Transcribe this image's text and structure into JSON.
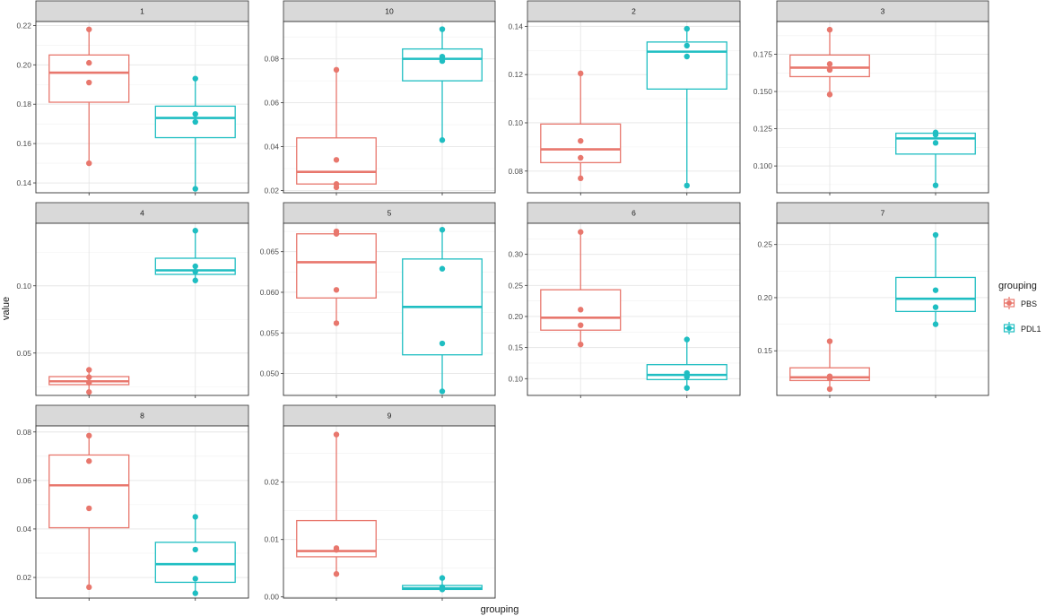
{
  "chart_data": {
    "type": "box",
    "ylabel": "value",
    "xlabel": "grouping",
    "groups": [
      "PBS",
      "PDL1"
    ],
    "colors": {
      "PBS": "#E8776D",
      "PDL1": "#1FBEC2"
    },
    "legend": {
      "title": "grouping",
      "position": "right",
      "entries": [
        "PBS",
        "PDL1"
      ]
    },
    "grid": true,
    "panels": [
      {
        "label": "1",
        "ylim": [
          0.135,
          0.222
        ],
        "yticks": [
          0.14,
          0.16,
          0.18,
          0.2,
          0.22
        ],
        "tick_labels": [
          "0.14",
          "0.16",
          "0.18",
          "0.20",
          "0.22"
        ],
        "PBS": {
          "q1": 0.181,
          "median": 0.196,
          "q3": 0.205,
          "min": 0.15,
          "max": 0.218,
          "points": [
            0.218,
            0.201,
            0.191,
            0.15
          ]
        },
        "PDL1": {
          "q1": 0.163,
          "median": 0.173,
          "q3": 0.179,
          "min": 0.137,
          "max": 0.193,
          "points": [
            0.193,
            0.175,
            0.171,
            0.137
          ]
        }
      },
      {
        "label": "10",
        "ylim": [
          0.019,
          0.097
        ],
        "yticks": [
          0.02,
          0.04,
          0.06,
          0.08
        ],
        "tick_labels": [
          "0.02",
          "0.04",
          "0.06",
          "0.08"
        ],
        "PBS": {
          "q1": 0.023,
          "median": 0.0285,
          "q3": 0.044,
          "min": 0.0215,
          "max": 0.075,
          "points": [
            0.075,
            0.034,
            0.023,
            0.0215
          ]
        },
        "PDL1": {
          "q1": 0.07,
          "median": 0.08,
          "q3": 0.0845,
          "min": 0.043,
          "max": 0.0935,
          "points": [
            0.0935,
            0.081,
            0.079,
            0.043
          ]
        }
      },
      {
        "label": "2",
        "ylim": [
          0.071,
          0.142
        ],
        "yticks": [
          0.08,
          0.1,
          0.12,
          0.14
        ],
        "tick_labels": [
          "0.08",
          "0.10",
          "0.12",
          "0.14"
        ],
        "PBS": {
          "q1": 0.0835,
          "median": 0.089,
          "q3": 0.0995,
          "min": 0.077,
          "max": 0.1205,
          "points": [
            0.1205,
            0.0925,
            0.0855,
            0.077
          ]
        },
        "PDL1": {
          "q1": 0.114,
          "median": 0.1295,
          "q3": 0.1335,
          "min": 0.074,
          "max": 0.139,
          "points": [
            0.139,
            0.132,
            0.1275,
            0.074
          ]
        }
      },
      {
        "label": "3",
        "ylim": [
          0.082,
          0.197
        ],
        "yticks": [
          0.1,
          0.125,
          0.15,
          0.175
        ],
        "tick_labels": [
          "0.100",
          "0.125",
          "0.150",
          "0.175"
        ],
        "PBS": {
          "q1": 0.16,
          "median": 0.166,
          "q3": 0.1745,
          "min": 0.148,
          "max": 0.1915,
          "points": [
            0.1915,
            0.1685,
            0.1645,
            0.148
          ]
        },
        "PDL1": {
          "q1": 0.108,
          "median": 0.1185,
          "q3": 0.122,
          "min": 0.087,
          "max": 0.1225,
          "points": [
            0.1225,
            0.121,
            0.1155,
            0.087
          ]
        }
      },
      {
        "label": "4",
        "ylim": [
          0.0185,
          0.1465
        ],
        "yticks": [
          0.05,
          0.1
        ],
        "tick_labels": [
          "0.05",
          "0.10"
        ],
        "PBS": {
          "q1": 0.0265,
          "median": 0.029,
          "q3": 0.0325,
          "min": 0.021,
          "max": 0.0375,
          "points": [
            0.0375,
            0.032,
            0.028,
            0.021
          ]
        },
        "PDL1": {
          "q1": 0.1085,
          "median": 0.1115,
          "q3": 0.1205,
          "min": 0.104,
          "max": 0.141,
          "points": [
            0.141,
            0.1145,
            0.1105,
            0.104
          ]
        }
      },
      {
        "label": "5",
        "ylim": [
          0.0473,
          0.0685
        ],
        "yticks": [
          0.05,
          0.055,
          0.06,
          0.065
        ],
        "tick_labels": [
          "0.050",
          "0.055",
          "0.060",
          "0.065"
        ],
        "PBS": {
          "q1": 0.0593,
          "median": 0.0637,
          "q3": 0.0672,
          "min": 0.0562,
          "max": 0.0675,
          "points": [
            0.0675,
            0.0672,
            0.0603,
            0.0562
          ]
        },
        "PDL1": {
          "q1": 0.0523,
          "median": 0.0582,
          "q3": 0.0641,
          "min": 0.0478,
          "max": 0.0677,
          "points": [
            0.0677,
            0.0629,
            0.0537,
            0.0478
          ]
        }
      },
      {
        "label": "6",
        "ylim": [
          0.073,
          0.35
        ],
        "yticks": [
          0.1,
          0.15,
          0.2,
          0.25,
          0.3
        ],
        "tick_labels": [
          "0.10",
          "0.15",
          "0.20",
          "0.25",
          "0.30"
        ],
        "PBS": {
          "q1": 0.178,
          "median": 0.198,
          "q3": 0.243,
          "min": 0.155,
          "max": 0.336,
          "points": [
            0.336,
            0.211,
            0.186,
            0.155
          ]
        },
        "PDL1": {
          "q1": 0.0985,
          "median": 0.106,
          "q3": 0.1225,
          "min": 0.085,
          "max": 0.163,
          "points": [
            0.163,
            0.109,
            0.103,
            0.085
          ]
        }
      },
      {
        "label": "7",
        "ylim": [
          0.108,
          0.27
        ],
        "yticks": [
          0.15,
          0.2,
          0.25
        ],
        "tick_labels": [
          "0.15",
          "0.20",
          "0.25"
        ],
        "PBS": {
          "q1": 0.122,
          "median": 0.125,
          "q3": 0.134,
          "min": 0.114,
          "max": 0.159,
          "points": [
            0.159,
            0.126,
            0.124,
            0.114
          ]
        },
        "PDL1": {
          "q1": 0.187,
          "median": 0.199,
          "q3": 0.219,
          "min": 0.175,
          "max": 0.259,
          "points": [
            0.259,
            0.207,
            0.191,
            0.175
          ]
        }
      },
      {
        "label": "8",
        "ylim": [
          0.0115,
          0.0825
        ],
        "yticks": [
          0.02,
          0.04,
          0.06,
          0.08
        ],
        "tick_labels": [
          "0.02",
          "0.04",
          "0.06",
          "0.08"
        ],
        "PBS": {
          "q1": 0.0405,
          "median": 0.058,
          "q3": 0.0705,
          "min": 0.016,
          "max": 0.0785,
          "points": [
            0.0785,
            0.068,
            0.0485,
            0.016
          ]
        },
        "PDL1": {
          "q1": 0.018,
          "median": 0.0255,
          "q3": 0.0345,
          "min": 0.0135,
          "max": 0.045,
          "points": [
            0.045,
            0.0315,
            0.0195,
            0.0135
          ]
        }
      },
      {
        "label": "9",
        "ylim": [
          -0.0002,
          0.0298
        ],
        "yticks": [
          0.0,
          0.01,
          0.02
        ],
        "tick_labels": [
          "0.00",
          "0.01",
          "0.02"
        ],
        "PBS": {
          "q1": 0.007,
          "median": 0.008,
          "q3": 0.0133,
          "min": 0.004,
          "max": 0.0283,
          "points": [
            0.0283,
            0.0085,
            0.0082,
            0.004
          ]
        },
        "PDL1": {
          "q1": 0.0013,
          "median": 0.0015,
          "q3": 0.002,
          "min": 0.0013,
          "max": 0.0033,
          "points": [
            0.0033,
            0.0017,
            0.0014,
            0.0013
          ]
        }
      }
    ]
  }
}
